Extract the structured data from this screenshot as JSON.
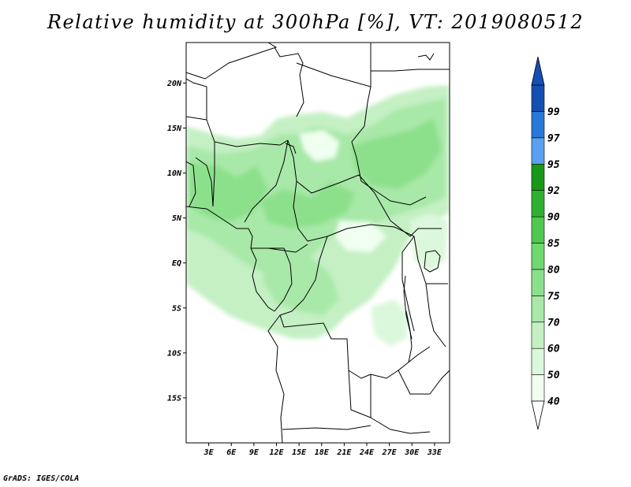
{
  "title": "Relative humidity at 300hPa [%], VT: 2019080512",
  "footer": "GrADS: IGES/COLA",
  "map": {
    "lon_range": [
      0,
      35
    ],
    "lat_range": [
      -20,
      24.5
    ],
    "lat_ticks": [
      {
        "value": 20,
        "label": "20N"
      },
      {
        "value": 15,
        "label": "15N"
      },
      {
        "value": 10,
        "label": "10N"
      },
      {
        "value": 5,
        "label": "5N"
      },
      {
        "value": 0,
        "label": "EQ"
      },
      {
        "value": -5,
        "label": "5S"
      },
      {
        "value": -10,
        "label": "10S"
      },
      {
        "value": -15,
        "label": "15S"
      }
    ],
    "lon_ticks": [
      {
        "value": 3,
        "label": "3E"
      },
      {
        "value": 6,
        "label": "6E"
      },
      {
        "value": 9,
        "label": "9E"
      },
      {
        "value": 12,
        "label": "12E"
      },
      {
        "value": 15,
        "label": "15E"
      },
      {
        "value": 18,
        "label": "18E"
      },
      {
        "value": 21,
        "label": "21E"
      },
      {
        "value": 24,
        "label": "24E"
      },
      {
        "value": 27,
        "label": "27E"
      },
      {
        "value": 30,
        "label": "30E"
      },
      {
        "value": 33,
        "label": "33E"
      }
    ]
  },
  "colorbar": {
    "levels": [
      {
        "label": "40",
        "color": "#f0fff0"
      },
      {
        "label": "50",
        "color": "#dcf8dc"
      },
      {
        "label": "60",
        "color": "#c4f0c4"
      },
      {
        "label": "70",
        "color": "#a8e8a8"
      },
      {
        "label": "75",
        "color": "#8ce08c"
      },
      {
        "label": "80",
        "color": "#70d870"
      },
      {
        "label": "85",
        "color": "#50c850"
      },
      {
        "label": "90",
        "color": "#30b030"
      },
      {
        "label": "92",
        "color": "#189818"
      },
      {
        "label": "95",
        "color": "#5aa0f0"
      },
      {
        "label": "97",
        "color": "#2878d8"
      },
      {
        "label": "99",
        "color": "#1450b4"
      }
    ],
    "lower_tip_color": "#ffffff",
    "upper_tip_color": "#1450b4"
  }
}
